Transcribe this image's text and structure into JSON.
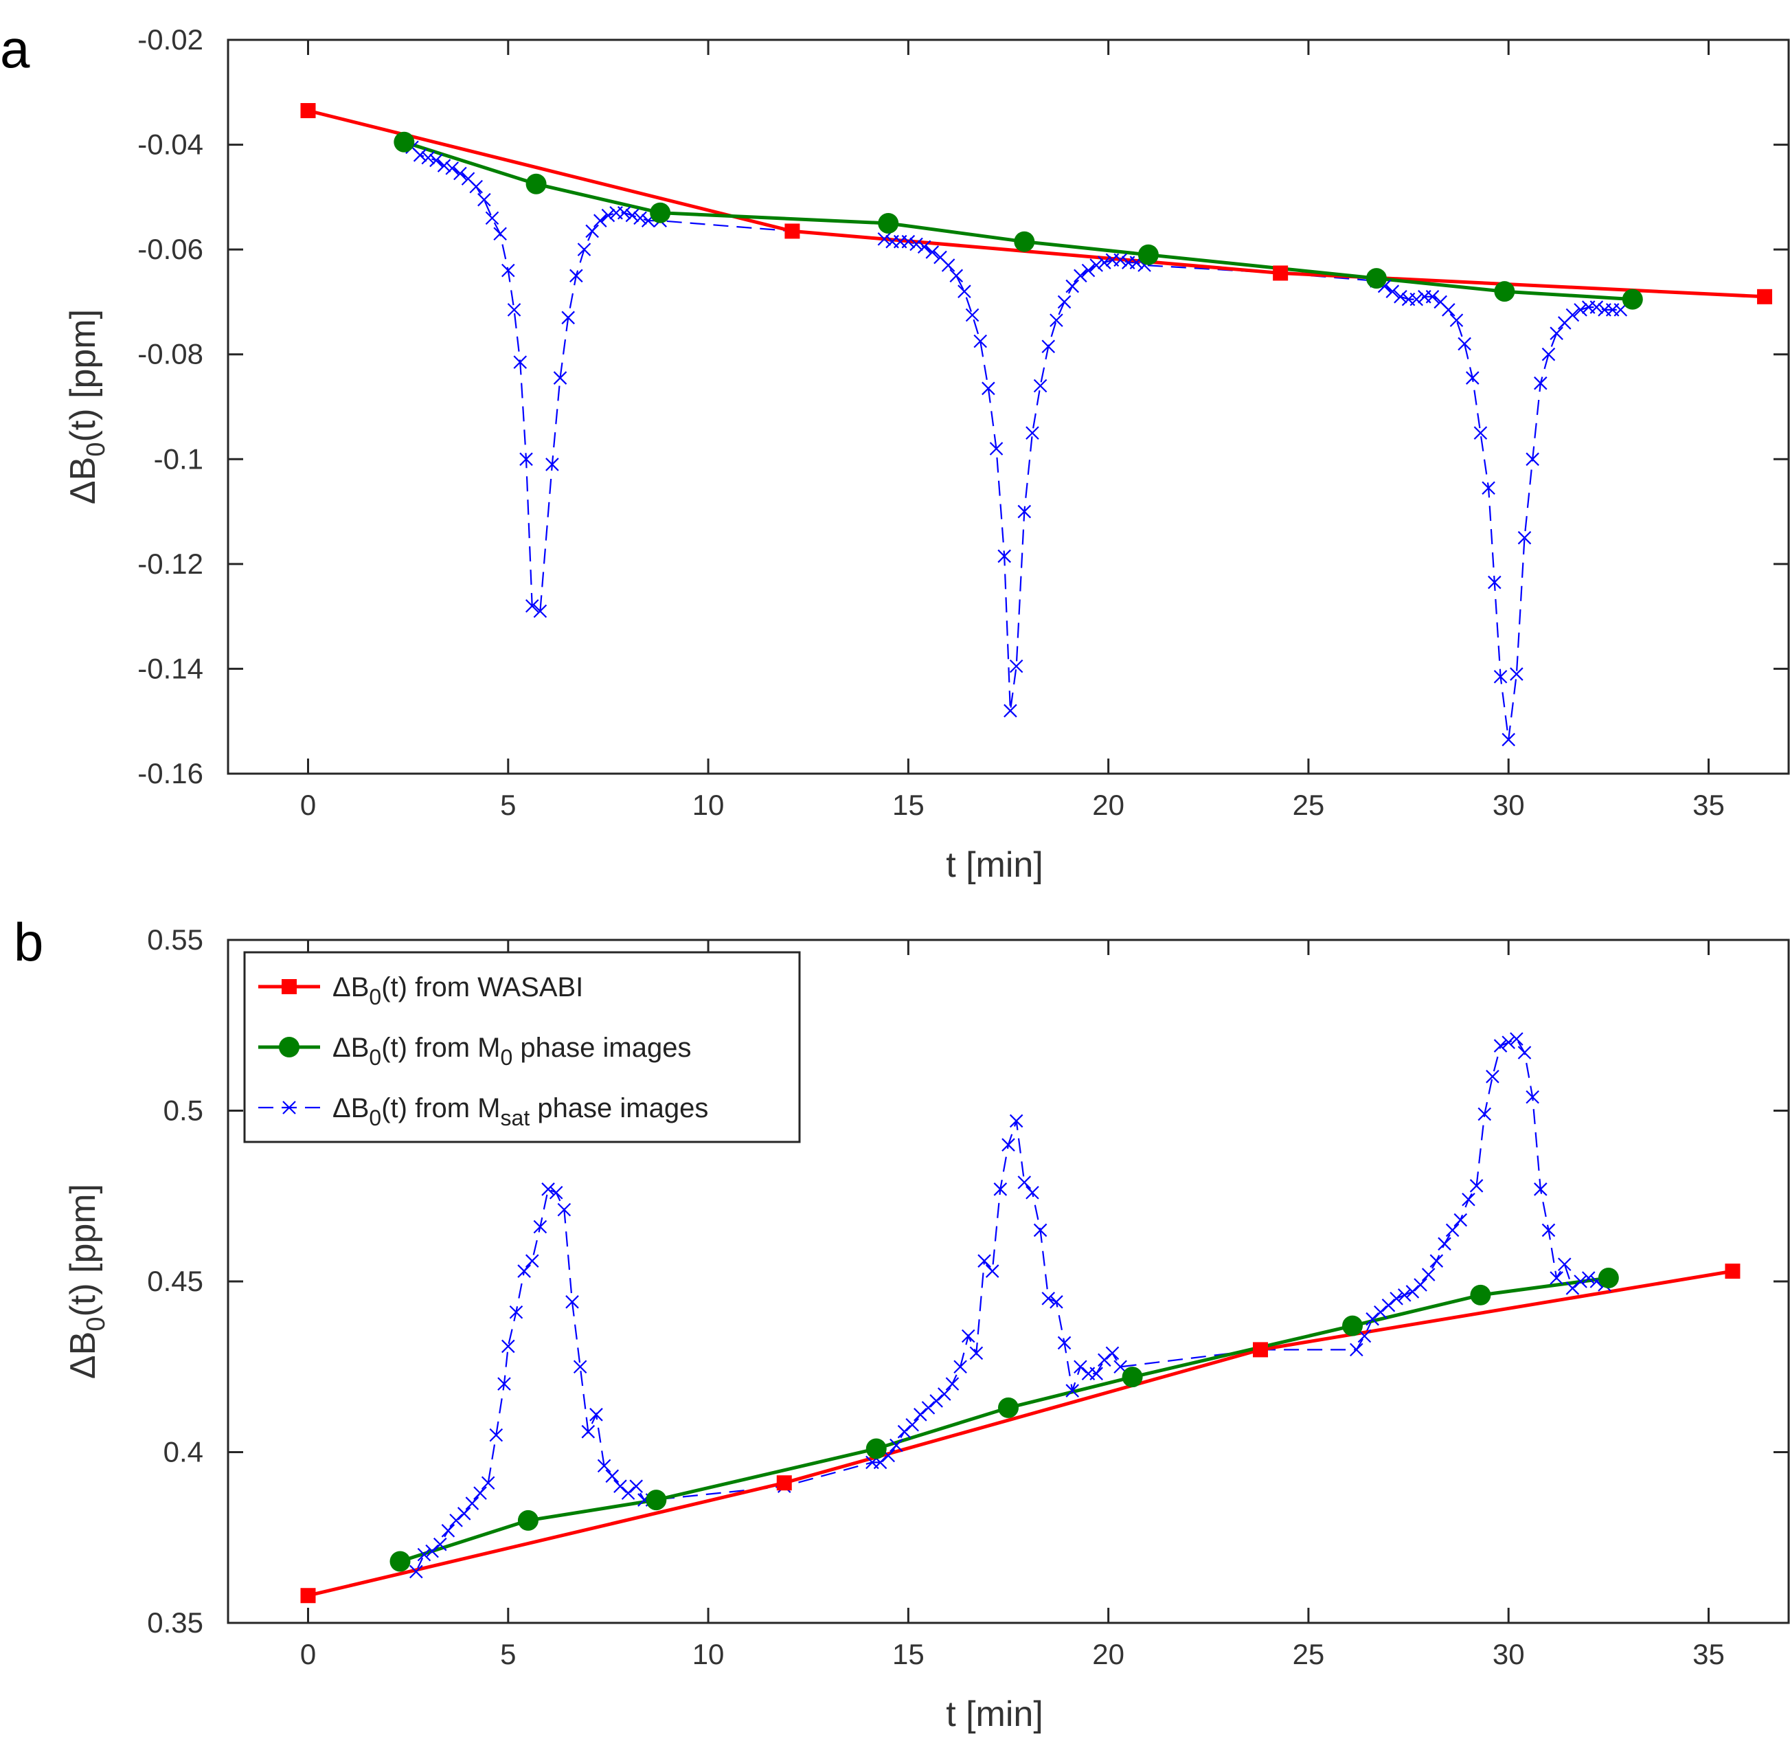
{
  "chart_data": [
    {
      "type": "line",
      "panel_label": "a",
      "xlabel": "t [min]",
      "ylabel_parts": [
        "ΔB",
        "0",
        "(t) [ppm]"
      ],
      "xlim": [
        -2,
        37
      ],
      "ylim": [
        -0.16,
        -0.02
      ],
      "xticks": [
        0,
        5,
        10,
        15,
        20,
        25,
        30,
        35
      ],
      "xtick_labels": [
        "0",
        "5",
        "10",
        "15",
        "20",
        "25",
        "30",
        "35"
      ],
      "yticks": [
        -0.02,
        -0.04,
        -0.06,
        -0.08,
        -0.1,
        -0.12,
        -0.14,
        -0.16
      ],
      "ytick_labels": [
        "-0.02",
        "-0.04",
        "-0.06",
        "-0.08",
        "-0.1",
        "-0.12",
        "-0.14",
        "-0.16"
      ],
      "grid": false,
      "legend": false,
      "series": [
        {
          "key": "wasabi",
          "color": "#ff0000",
          "marker": "square",
          "line": "solid",
          "x": [
            0,
            12.1,
            24.3,
            36.4
          ],
          "y": [
            -0.0335,
            -0.0565,
            -0.0645,
            -0.069
          ]
        },
        {
          "key": "m0",
          "color": "#007f00",
          "marker": "circle",
          "line": "solid",
          "x": [
            2.4,
            5.7,
            8.8,
            14.5,
            17.9,
            21.0,
            26.7,
            29.9,
            33.1
          ],
          "y": [
            -0.0395,
            -0.0475,
            -0.053,
            -0.055,
            -0.0585,
            -0.061,
            -0.0655,
            -0.068,
            -0.0695
          ]
        },
        {
          "key": "msat",
          "color": "#0000ff",
          "marker": "x",
          "line": "dashed",
          "x": [
            2.6,
            2.8,
            3.0,
            3.2,
            3.4,
            3.6,
            3.8,
            4.0,
            4.2,
            4.4,
            4.6,
            4.8,
            5.0,
            5.15,
            5.3,
            5.45,
            5.6,
            5.8,
            6.1,
            6.3,
            6.5,
            6.7,
            6.9,
            7.1,
            7.3,
            7.5,
            7.7,
            7.9,
            8.1,
            8.3,
            8.5,
            8.8,
            12.1,
            14.4,
            14.6,
            14.8,
            15.0,
            15.2,
            15.4,
            15.6,
            15.8,
            16.0,
            16.2,
            16.4,
            16.6,
            16.8,
            17.0,
            17.2,
            17.4,
            17.55,
            17.7,
            17.9,
            18.1,
            18.3,
            18.5,
            18.7,
            18.9,
            19.1,
            19.3,
            19.5,
            19.7,
            19.9,
            20.1,
            20.3,
            20.5,
            20.7,
            20.9,
            24.3,
            26.7,
            26.9,
            27.1,
            27.3,
            27.5,
            27.7,
            27.9,
            28.1,
            28.3,
            28.5,
            28.7,
            28.9,
            29.1,
            29.3,
            29.5,
            29.65,
            29.8,
            30.0,
            30.2,
            30.4,
            30.6,
            30.8,
            31.0,
            31.2,
            31.4,
            31.6,
            31.8,
            32.0,
            32.2,
            32.4,
            32.6,
            32.8
          ],
          "y": [
            -0.0405,
            -0.042,
            -0.0425,
            -0.043,
            -0.044,
            -0.0445,
            -0.0455,
            -0.0465,
            -0.048,
            -0.0505,
            -0.054,
            -0.057,
            -0.064,
            -0.0715,
            -0.0815,
            -0.1,
            -0.128,
            -0.129,
            -0.101,
            -0.0845,
            -0.073,
            -0.065,
            -0.06,
            -0.0565,
            -0.0545,
            -0.0535,
            -0.053,
            -0.053,
            -0.0535,
            -0.054,
            -0.0545,
            -0.0545,
            -0.0565,
            -0.058,
            -0.0585,
            -0.0585,
            -0.0585,
            -0.059,
            -0.0595,
            -0.0605,
            -0.0615,
            -0.063,
            -0.065,
            -0.068,
            -0.0725,
            -0.0775,
            -0.0865,
            -0.098,
            -0.1185,
            -0.148,
            -0.1395,
            -0.11,
            -0.095,
            -0.086,
            -0.0785,
            -0.0735,
            -0.07,
            -0.067,
            -0.065,
            -0.064,
            -0.063,
            -0.0625,
            -0.062,
            -0.062,
            -0.0625,
            -0.0625,
            -0.063,
            -0.0645,
            -0.066,
            -0.067,
            -0.068,
            -0.069,
            -0.0695,
            -0.0695,
            -0.069,
            -0.069,
            -0.07,
            -0.0715,
            -0.0735,
            -0.078,
            -0.0845,
            -0.095,
            -0.1055,
            -0.1235,
            -0.1415,
            -0.1535,
            -0.141,
            -0.115,
            -0.1,
            -0.0855,
            -0.08,
            -0.076,
            -0.074,
            -0.0725,
            -0.0715,
            -0.071,
            -0.071,
            -0.0715,
            -0.0715,
            -0.0715
          ]
        }
      ]
    },
    {
      "type": "line",
      "panel_label": "b",
      "xlabel": "t [min]",
      "ylabel_parts": [
        "ΔB",
        "0",
        "(t) [ppm]"
      ],
      "xlim": [
        -2,
        37
      ],
      "ylim": [
        0.35,
        0.55
      ],
      "xticks": [
        0,
        5,
        10,
        15,
        20,
        25,
        30,
        35
      ],
      "xtick_labels": [
        "0",
        "5",
        "10",
        "15",
        "20",
        "25",
        "30",
        "35"
      ],
      "yticks": [
        0.35,
        0.4,
        0.45,
        0.5,
        0.55
      ],
      "ytick_labels": [
        "0.35",
        "0.4",
        "0.45",
        "0.5",
        "0.55"
      ],
      "grid": false,
      "legend": true,
      "legend_position": "top-left",
      "series": [
        {
          "key": "wasabi",
          "color": "#ff0000",
          "marker": "square",
          "line": "solid",
          "label_parts": [
            "ΔB",
            "0",
            "(t) from WASABI",
            "",
            ""
          ],
          "x": [
            0,
            11.9,
            23.8,
            35.6
          ],
          "y": [
            0.358,
            0.391,
            0.43,
            0.453
          ]
        },
        {
          "key": "m0",
          "color": "#007f00",
          "marker": "circle",
          "line": "solid",
          "label_parts": [
            "ΔB",
            "0",
            "(t) from M",
            "0",
            " phase images"
          ],
          "x": [
            2.3,
            5.5,
            8.7,
            14.2,
            17.5,
            20.6,
            26.1,
            29.3,
            32.5
          ],
          "y": [
            0.368,
            0.38,
            0.386,
            0.401,
            0.413,
            0.422,
            0.437,
            0.446,
            0.451
          ]
        },
        {
          "key": "msat",
          "color": "#0000ff",
          "marker": "x",
          "line": "dashed",
          "label_parts": [
            "ΔB",
            "0",
            "(t) from M",
            "sat",
            " phase images"
          ],
          "x": [
            2.7,
            2.9,
            3.1,
            3.3,
            3.5,
            3.7,
            3.9,
            4.1,
            4.3,
            4.5,
            4.7,
            4.9,
            5.0,
            5.2,
            5.4,
            5.6,
            5.8,
            6.0,
            6.2,
            6.4,
            6.6,
            6.8,
            7.0,
            7.2,
            7.4,
            7.6,
            7.8,
            8.0,
            8.2,
            8.4,
            8.6,
            11.9,
            14.1,
            14.3,
            14.5,
            14.7,
            14.9,
            15.1,
            15.3,
            15.5,
            15.7,
            15.9,
            16.1,
            16.3,
            16.5,
            16.7,
            16.9,
            17.1,
            17.3,
            17.5,
            17.7,
            17.9,
            18.1,
            18.3,
            18.5,
            18.7,
            18.9,
            19.1,
            19.3,
            19.5,
            19.7,
            19.9,
            20.1,
            20.3,
            23.8,
            26.2,
            26.4,
            26.6,
            26.8,
            27.0,
            27.2,
            27.4,
            27.6,
            27.8,
            28.0,
            28.2,
            28.4,
            28.6,
            28.8,
            29.0,
            29.2,
            29.4,
            29.6,
            29.8,
            30.0,
            30.2,
            30.4,
            30.6,
            30.8,
            31.0,
            31.2,
            31.4,
            31.6,
            31.8,
            32.0,
            32.2,
            32.4
          ],
          "y": [
            0.365,
            0.37,
            0.371,
            0.373,
            0.377,
            0.38,
            0.382,
            0.385,
            0.388,
            0.391,
            0.405,
            0.42,
            0.431,
            0.441,
            0.453,
            0.456,
            0.466,
            0.477,
            0.476,
            0.471,
            0.444,
            0.425,
            0.406,
            0.411,
            0.396,
            0.393,
            0.39,
            0.388,
            0.39,
            0.386,
            0.386,
            0.39,
            0.397,
            0.397,
            0.399,
            0.402,
            0.406,
            0.408,
            0.411,
            0.413,
            0.415,
            0.417,
            0.42,
            0.425,
            0.434,
            0.429,
            0.456,
            0.453,
            0.477,
            0.49,
            0.497,
            0.479,
            0.476,
            0.465,
            0.445,
            0.444,
            0.432,
            0.418,
            0.425,
            0.423,
            0.423,
            0.427,
            0.429,
            0.425,
            0.43,
            0.43,
            0.434,
            0.439,
            0.441,
            0.443,
            0.445,
            0.446,
            0.447,
            0.449,
            0.452,
            0.456,
            0.461,
            0.465,
            0.468,
            0.474,
            0.478,
            0.499,
            0.51,
            0.519,
            0.52,
            0.521,
            0.517,
            0.504,
            0.477,
            0.465,
            0.451,
            0.455,
            0.448,
            0.45,
            0.451,
            0.45,
            0.449
          ]
        }
      ]
    }
  ]
}
